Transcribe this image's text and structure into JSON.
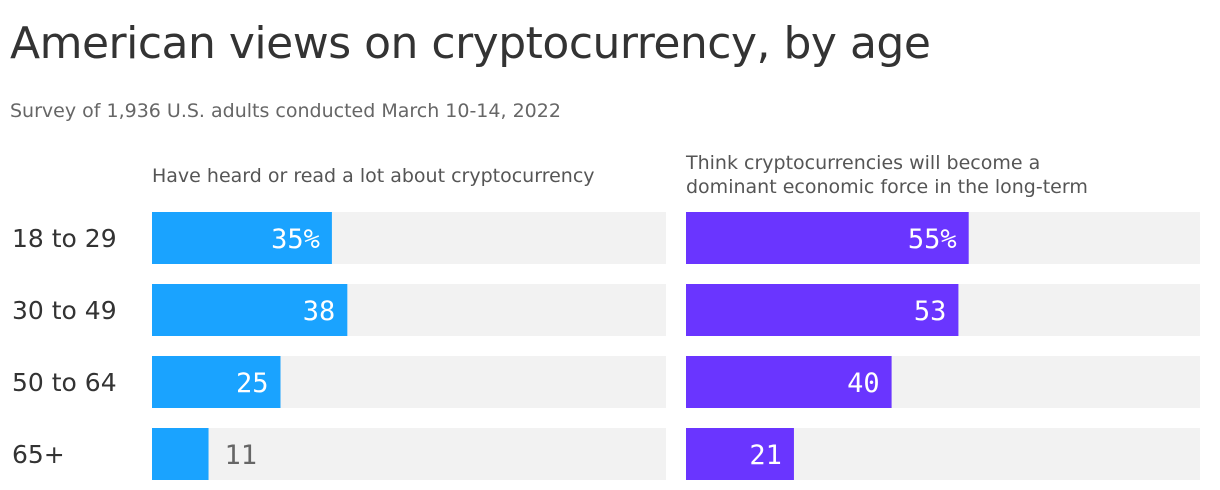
{
  "title": "American views on cryptocurrency, by age",
  "subtitle": "Survey of 1,936 U.S. adults conducted March 10-14, 2022",
  "colors": {
    "track": "#f2f2f2",
    "panel_1": "#1aa3ff",
    "panel_2": "#6a35ff",
    "label_inside": "#ffffff",
    "label_outside": "#666666"
  },
  "chart_data": {
    "type": "bar",
    "orientation": "horizontal",
    "categories": [
      "18 to 29",
      "30 to 49",
      "50 to 64",
      "65+"
    ],
    "xlim": [
      0,
      100
    ],
    "series": [
      {
        "name": "Have heard or read a lot about cryptocurrency",
        "values": [
          35,
          38,
          25,
          11
        ],
        "labels": [
          "35%",
          "38",
          "25",
          "11"
        ]
      },
      {
        "name": "Think cryptocurrencies will become a\ndominant economic force in the long-term",
        "values": [
          55,
          53,
          40,
          21
        ],
        "labels": [
          "55%",
          "53",
          "40",
          "21"
        ]
      }
    ]
  }
}
